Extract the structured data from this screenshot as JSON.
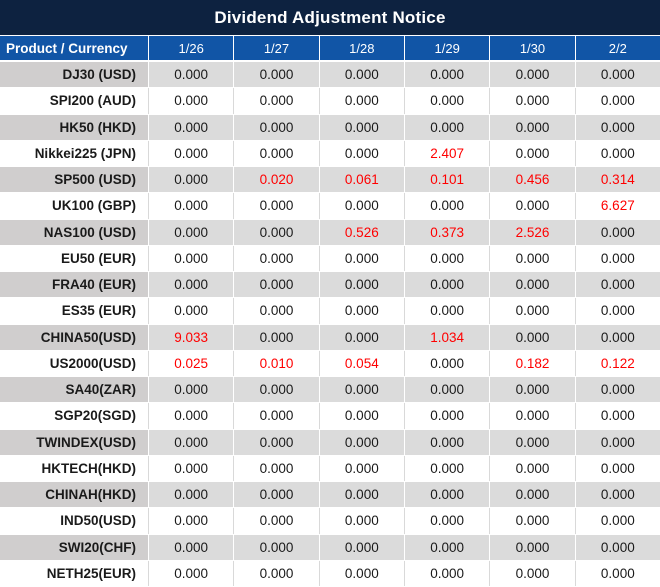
{
  "title": "Dividend Adjustment Notice",
  "table": {
    "product_header": "Product / Currency",
    "date_headers": [
      "1/26",
      "1/27",
      "1/28",
      "1/29",
      "1/30",
      "2/2"
    ],
    "rows": [
      {
        "product": "DJ30 (USD)",
        "values": [
          "0.000",
          "0.000",
          "0.000",
          "0.000",
          "0.000",
          "0.000"
        ]
      },
      {
        "product": "SPI200 (AUD)",
        "values": [
          "0.000",
          "0.000",
          "0.000",
          "0.000",
          "0.000",
          "0.000"
        ]
      },
      {
        "product": "HK50 (HKD)",
        "values": [
          "0.000",
          "0.000",
          "0.000",
          "0.000",
          "0.000",
          "0.000"
        ]
      },
      {
        "product": "Nikkei225 (JPN)",
        "values": [
          "0.000",
          "0.000",
          "0.000",
          "2.407",
          "0.000",
          "0.000"
        ]
      },
      {
        "product": "SP500 (USD)",
        "values": [
          "0.000",
          "0.020",
          "0.061",
          "0.101",
          "0.456",
          "0.314"
        ]
      },
      {
        "product": "UK100 (GBP)",
        "values": [
          "0.000",
          "0.000",
          "0.000",
          "0.000",
          "0.000",
          "6.627"
        ]
      },
      {
        "product": "NAS100 (USD)",
        "values": [
          "0.000",
          "0.000",
          "0.526",
          "0.373",
          "2.526",
          "0.000"
        ]
      },
      {
        "product": "EU50 (EUR)",
        "values": [
          "0.000",
          "0.000",
          "0.000",
          "0.000",
          "0.000",
          "0.000"
        ]
      },
      {
        "product": "FRA40 (EUR)",
        "values": [
          "0.000",
          "0.000",
          "0.000",
          "0.000",
          "0.000",
          "0.000"
        ]
      },
      {
        "product": "ES35 (EUR)",
        "values": [
          "0.000",
          "0.000",
          "0.000",
          "0.000",
          "0.000",
          "0.000"
        ]
      },
      {
        "product": "CHINA50(USD)",
        "values": [
          "9.033",
          "0.000",
          "0.000",
          "1.034",
          "0.000",
          "0.000"
        ]
      },
      {
        "product": "US2000(USD)",
        "values": [
          "0.025",
          "0.010",
          "0.054",
          "0.000",
          "0.182",
          "0.122"
        ]
      },
      {
        "product": "SA40(ZAR)",
        "values": [
          "0.000",
          "0.000",
          "0.000",
          "0.000",
          "0.000",
          "0.000"
        ]
      },
      {
        "product": "SGP20(SGD)",
        "values": [
          "0.000",
          "0.000",
          "0.000",
          "0.000",
          "0.000",
          "0.000"
        ]
      },
      {
        "product": "TWINDEX(USD)",
        "values": [
          "0.000",
          "0.000",
          "0.000",
          "0.000",
          "0.000",
          "0.000"
        ]
      },
      {
        "product": "HKTECH(HKD)",
        "values": [
          "0.000",
          "0.000",
          "0.000",
          "0.000",
          "0.000",
          "0.000"
        ]
      },
      {
        "product": "CHINAH(HKD)",
        "values": [
          "0.000",
          "0.000",
          "0.000",
          "0.000",
          "0.000",
          "0.000"
        ]
      },
      {
        "product": "IND50(USD)",
        "values": [
          "0.000",
          "0.000",
          "0.000",
          "0.000",
          "0.000",
          "0.000"
        ]
      },
      {
        "product": "SWI20(CHF)",
        "values": [
          "0.000",
          "0.000",
          "0.000",
          "0.000",
          "0.000",
          "0.000"
        ]
      },
      {
        "product": "NETH25(EUR)",
        "values": [
          "0.000",
          "0.000",
          "0.000",
          "0.000",
          "0.000",
          "0.000"
        ]
      }
    ]
  },
  "colors": {
    "title_bg": "#0D2240",
    "header_bg": "#1155A6",
    "row_alt_bg": "#DBDBDB",
    "product_alt_bg": "#D0CECE",
    "highlight_text": "#FF0000",
    "text": "#1A1A1A"
  }
}
